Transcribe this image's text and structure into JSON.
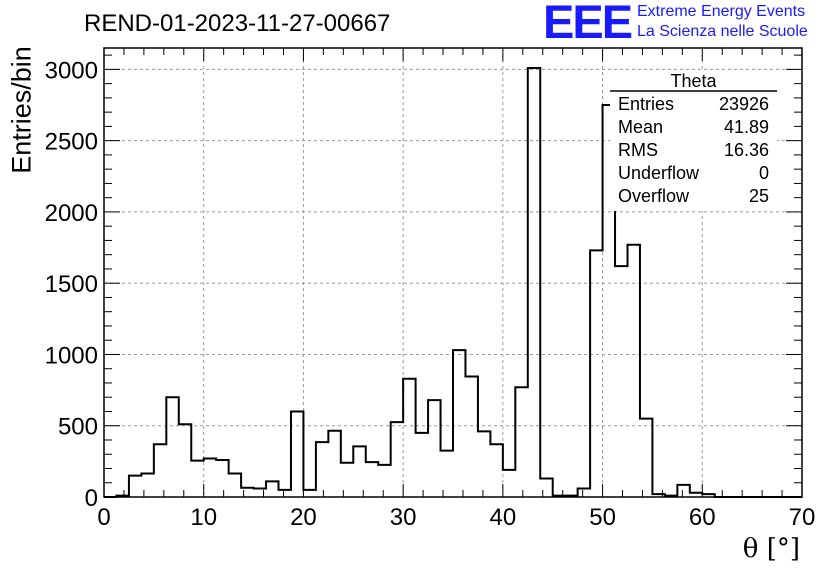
{
  "title": "REND-01-2023-11-27-00667",
  "logo": {
    "mark": "EEE",
    "line1": "Extreme Energy Events",
    "line2": "La Scienza nelle Scuole",
    "color": "#1a1aff"
  },
  "stats_box": {
    "name": "Theta",
    "rows": [
      {
        "label": "Entries",
        "value": "23926"
      },
      {
        "label": "Mean",
        "value": "41.89"
      },
      {
        "label": "RMS",
        "value": "16.36"
      },
      {
        "label": "Underflow",
        "value": "0"
      },
      {
        "label": "Overflow",
        "value": "25"
      }
    ]
  },
  "chart_data": {
    "type": "bar",
    "histogram": true,
    "xlabel": "θ [°]",
    "ylabel": "Entries/bin",
    "xlim": [
      0,
      70
    ],
    "ylim": [
      0,
      3150
    ],
    "x_ticks": [
      0,
      10,
      20,
      30,
      40,
      50,
      60,
      70
    ],
    "y_ticks": [
      0,
      500,
      1000,
      1500,
      2000,
      2500,
      3000
    ],
    "grid": true,
    "bin_width": 1.25,
    "bin_edges_start": 0,
    "values": [
      0,
      10,
      150,
      165,
      370,
      700,
      510,
      255,
      270,
      260,
      165,
      65,
      60,
      110,
      50,
      600,
      50,
      385,
      465,
      240,
      355,
      245,
      225,
      525,
      830,
      450,
      680,
      325,
      1030,
      845,
      460,
      370,
      190,
      770,
      3010,
      130,
      10,
      10,
      60,
      1730,
      2750,
      1620,
      1770,
      550,
      20,
      10,
      85,
      30,
      20,
      0,
      0,
      0,
      0,
      0,
      0,
      0
    ],
    "line_color": "#000000"
  }
}
